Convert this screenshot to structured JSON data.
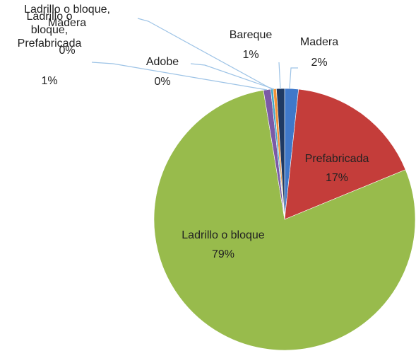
{
  "chart_data": {
    "type": "pie",
    "categories": [
      "Madera",
      "Prefabricada",
      "Ladrillo o bloque",
      "Ladrillo o bloque, Prefabricada",
      "Ladrillo o bloque, Madera",
      "Adobe",
      "Bareque"
    ],
    "values": [
      1.7,
      17.1,
      78.6,
      0.9,
      0.3,
      0.4,
      1.0
    ],
    "value_labels": [
      "2%",
      "17%",
      "79%",
      "1%",
      "0%",
      "0%",
      "1%"
    ],
    "colors": [
      "#3f78c9",
      "#c43d3a",
      "#98bb4c",
      "#7b5aa6",
      "#43a8c8",
      "#f39237",
      "#1f3a63"
    ]
  }
}
